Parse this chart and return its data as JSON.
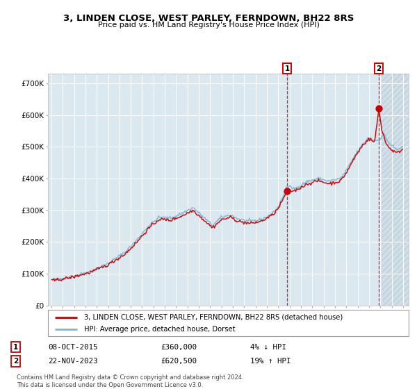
{
  "title": "3, LINDEN CLOSE, WEST PARLEY, FERNDOWN, BH22 8RS",
  "subtitle": "Price paid vs. HM Land Registry's House Price Index (HPI)",
  "legend_line1": "3, LINDEN CLOSE, WEST PARLEY, FERNDOWN, BH22 8RS (detached house)",
  "legend_line2": "HPI: Average price, detached house, Dorset",
  "sale1_date": "08-OCT-2015",
  "sale1_price": 360000,
  "sale1_label": "4% ↓ HPI",
  "sale2_date": "22-NOV-2023",
  "sale2_price": 620500,
  "sale2_label": "19% ↑ HPI",
  "footnote": "Contains HM Land Registry data © Crown copyright and database right 2024.\nThis data is licensed under the Open Government Licence v3.0.",
  "hpi_color": "#7ab8d9",
  "price_color": "#cc0000",
  "plot_bg": "#dce8f0",
  "grid_color": "#ffffff",
  "ylim": [
    0,
    730000
  ],
  "xlim_start": 1994.7,
  "xlim_end": 2026.5,
  "sale1_year": 2015.79,
  "sale2_year": 2023.88
}
